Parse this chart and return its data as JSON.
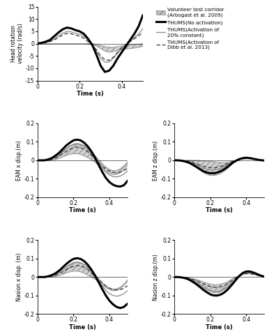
{
  "t": [
    0.0,
    0.02,
    0.04,
    0.06,
    0.08,
    0.1,
    0.12,
    0.14,
    0.16,
    0.18,
    0.2,
    0.22,
    0.24,
    0.26,
    0.28,
    0.3,
    0.32,
    0.34,
    0.36,
    0.38,
    0.4,
    0.42,
    0.44,
    0.46,
    0.48,
    0.5
  ],
  "hrv_no_act": [
    0,
    0.3,
    0.8,
    1.5,
    3.0,
    4.5,
    5.8,
    6.5,
    6.2,
    5.5,
    5.0,
    4.0,
    2.0,
    -0.5,
    -4.5,
    -9.0,
    -11.5,
    -11.0,
    -9.0,
    -6.0,
    -3.5,
    -1.0,
    1.5,
    4.0,
    7.0,
    11.5
  ],
  "hrv_20pct": [
    0,
    0.2,
    0.5,
    1.0,
    2.0,
    3.2,
    4.2,
    5.0,
    4.8,
    4.2,
    3.8,
    3.0,
    1.5,
    -0.2,
    -3.0,
    -6.0,
    -7.5,
    -7.5,
    -6.0,
    -4.0,
    -2.0,
    -0.5,
    1.0,
    2.5,
    4.0,
    6.0
  ],
  "hrv_dibb": [
    0,
    0.2,
    0.4,
    0.8,
    1.5,
    2.5,
    3.5,
    4.2,
    4.0,
    3.5,
    3.0,
    2.2,
    0.8,
    -0.5,
    -2.5,
    -5.0,
    -6.5,
    -6.8,
    -5.5,
    -3.5,
    -1.8,
    -0.3,
    0.8,
    2.0,
    3.2,
    4.5
  ],
  "hrv_corr_upper": [
    0,
    0.0,
    0.0,
    0.0,
    0.0,
    0.0,
    0.0,
    0.0,
    0.0,
    0.0,
    0.0,
    0.0,
    0.0,
    0.0,
    -0.3,
    -0.8,
    -1.2,
    -1.5,
    -1.5,
    -1.2,
    -1.0,
    -0.8,
    -0.5,
    -0.3,
    -0.2,
    -0.1
  ],
  "hrv_corr_lower": [
    0,
    0.0,
    0.0,
    0.0,
    0.0,
    0.0,
    0.0,
    0.0,
    0.0,
    0.0,
    0.0,
    0.0,
    -0.2,
    -0.5,
    -1.0,
    -2.0,
    -3.0,
    -3.5,
    -3.2,
    -2.8,
    -2.5,
    -2.2,
    -2.0,
    -1.8,
    -1.5,
    -1.2
  ],
  "eam_x_no_act": [
    0,
    0,
    0,
    0.005,
    0.012,
    0.025,
    0.04,
    0.06,
    0.08,
    0.095,
    0.108,
    0.112,
    0.108,
    0.095,
    0.075,
    0.048,
    0.015,
    -0.025,
    -0.062,
    -0.095,
    -0.118,
    -0.132,
    -0.14,
    -0.142,
    -0.135,
    -0.112
  ],
  "eam_x_20pct": [
    0,
    0,
    0,
    0.003,
    0.008,
    0.018,
    0.03,
    0.046,
    0.062,
    0.076,
    0.085,
    0.088,
    0.085,
    0.075,
    0.058,
    0.035,
    0.008,
    -0.018,
    -0.042,
    -0.065,
    -0.08,
    -0.088,
    -0.09,
    -0.085,
    -0.075,
    -0.058
  ],
  "eam_x_dibb": [
    0,
    0,
    0,
    0.002,
    0.005,
    0.012,
    0.022,
    0.035,
    0.048,
    0.06,
    0.068,
    0.072,
    0.068,
    0.06,
    0.046,
    0.028,
    0.006,
    -0.012,
    -0.03,
    -0.046,
    -0.058,
    -0.065,
    -0.068,
    -0.065,
    -0.056,
    -0.044
  ],
  "eam_x_corr_upper": [
    0,
    0,
    0.002,
    0.006,
    0.012,
    0.022,
    0.035,
    0.05,
    0.065,
    0.078,
    0.088,
    0.092,
    0.088,
    0.08,
    0.066,
    0.048,
    0.026,
    0.004,
    -0.018,
    -0.036,
    -0.05,
    -0.056,
    -0.055,
    -0.046,
    -0.03,
    -0.01
  ],
  "eam_x_corr_lower": [
    0,
    0,
    -0.001,
    -0.001,
    0.0,
    0.004,
    0.01,
    0.018,
    0.026,
    0.032,
    0.036,
    0.036,
    0.032,
    0.024,
    0.014,
    0.004,
    -0.01,
    -0.026,
    -0.044,
    -0.06,
    -0.072,
    -0.078,
    -0.076,
    -0.066,
    -0.05,
    -0.03
  ],
  "eam_z_no_act": [
    0,
    0,
    -0.002,
    -0.006,
    -0.012,
    -0.022,
    -0.034,
    -0.046,
    -0.058,
    -0.066,
    -0.07,
    -0.07,
    -0.066,
    -0.058,
    -0.046,
    -0.032,
    -0.016,
    -0.004,
    0.006,
    0.012,
    0.014,
    0.012,
    0.008,
    0.004,
    0.001,
    -0.001
  ],
  "eam_z_20pct": [
    0,
    0,
    -0.001,
    -0.004,
    -0.008,
    -0.015,
    -0.024,
    -0.033,
    -0.042,
    -0.048,
    -0.052,
    -0.052,
    -0.048,
    -0.042,
    -0.033,
    -0.022,
    -0.01,
    -0.001,
    0.007,
    0.012,
    0.013,
    0.012,
    0.008,
    0.004,
    0.001,
    0.0
  ],
  "eam_z_dibb": [
    0,
    0,
    -0.001,
    -0.003,
    -0.006,
    -0.011,
    -0.018,
    -0.025,
    -0.032,
    -0.037,
    -0.04,
    -0.04,
    -0.037,
    -0.032,
    -0.025,
    -0.016,
    -0.007,
    0.001,
    0.007,
    0.011,
    0.012,
    0.011,
    0.008,
    0.004,
    0.001,
    0.0
  ],
  "eam_z_corr_upper": [
    0,
    0,
    0.0,
    0.0,
    0.0,
    0.0,
    0.0,
    -0.001,
    -0.002,
    -0.004,
    -0.006,
    -0.008,
    -0.01,
    -0.012,
    -0.012,
    -0.01,
    -0.006,
    -0.001,
    0.003,
    0.006,
    0.008,
    0.008,
    0.006,
    0.004,
    0.002,
    0.001
  ],
  "eam_z_corr_lower": [
    0,
    0,
    -0.003,
    -0.008,
    -0.016,
    -0.026,
    -0.038,
    -0.052,
    -0.066,
    -0.076,
    -0.082,
    -0.082,
    -0.078,
    -0.07,
    -0.058,
    -0.042,
    -0.022,
    -0.006,
    0.005,
    0.012,
    0.015,
    0.014,
    0.01,
    0.006,
    0.002,
    -0.001
  ],
  "nas_x_no_act": [
    0,
    0,
    0,
    0.004,
    0.01,
    0.02,
    0.034,
    0.052,
    0.07,
    0.086,
    0.098,
    0.102,
    0.098,
    0.086,
    0.066,
    0.04,
    0.008,
    -0.028,
    -0.065,
    -0.1,
    -0.128,
    -0.148,
    -0.162,
    -0.168,
    -0.162,
    -0.145
  ],
  "nas_x_20pct": [
    0,
    0,
    0,
    0.002,
    0.007,
    0.015,
    0.026,
    0.04,
    0.055,
    0.068,
    0.078,
    0.082,
    0.078,
    0.068,
    0.052,
    0.03,
    0.004,
    -0.022,
    -0.048,
    -0.072,
    -0.09,
    -0.1,
    -0.104,
    -0.1,
    -0.09,
    -0.075
  ],
  "nas_x_dibb": [
    0,
    0,
    0,
    0.001,
    0.004,
    0.01,
    0.018,
    0.028,
    0.04,
    0.05,
    0.058,
    0.062,
    0.06,
    0.052,
    0.04,
    0.022,
    0.002,
    -0.016,
    -0.032,
    -0.048,
    -0.06,
    -0.068,
    -0.07,
    -0.068,
    -0.06,
    -0.048
  ],
  "nas_x_corr_upper": [
    0,
    0,
    0.001,
    0.004,
    0.009,
    0.016,
    0.026,
    0.038,
    0.052,
    0.064,
    0.074,
    0.078,
    0.076,
    0.068,
    0.055,
    0.036,
    0.014,
    -0.008,
    -0.03,
    -0.048,
    -0.06,
    -0.066,
    -0.064,
    -0.055,
    -0.038,
    -0.016
  ],
  "nas_x_corr_lower": [
    0,
    0,
    -0.001,
    -0.001,
    0.0,
    0.003,
    0.008,
    0.014,
    0.022,
    0.028,
    0.032,
    0.032,
    0.028,
    0.02,
    0.01,
    0.0,
    -0.012,
    -0.026,
    -0.042,
    -0.058,
    -0.068,
    -0.074,
    -0.072,
    -0.062,
    -0.046,
    -0.026
  ],
  "nas_z_no_act": [
    0,
    0,
    -0.002,
    -0.006,
    -0.013,
    -0.024,
    -0.037,
    -0.052,
    -0.068,
    -0.082,
    -0.094,
    -0.1,
    -0.1,
    -0.094,
    -0.082,
    -0.064,
    -0.042,
    -0.018,
    0.005,
    0.022,
    0.03,
    0.03,
    0.024,
    0.016,
    0.008,
    0.002
  ],
  "nas_z_20pct": [
    0,
    0,
    -0.001,
    -0.004,
    -0.009,
    -0.017,
    -0.027,
    -0.038,
    -0.05,
    -0.062,
    -0.072,
    -0.078,
    -0.078,
    -0.072,
    -0.062,
    -0.048,
    -0.03,
    -0.012,
    0.004,
    0.016,
    0.022,
    0.022,
    0.018,
    0.012,
    0.006,
    0.001
  ],
  "nas_z_dibb": [
    0,
    0,
    -0.001,
    -0.003,
    -0.006,
    -0.012,
    -0.019,
    -0.027,
    -0.036,
    -0.044,
    -0.052,
    -0.056,
    -0.056,
    -0.052,
    -0.044,
    -0.034,
    -0.02,
    -0.006,
    0.006,
    0.014,
    0.018,
    0.018,
    0.014,
    0.01,
    0.005,
    0.001
  ],
  "nas_z_corr_upper": [
    0,
    0,
    -0.001,
    -0.002,
    -0.004,
    -0.008,
    -0.013,
    -0.019,
    -0.026,
    -0.032,
    -0.038,
    -0.042,
    -0.042,
    -0.038,
    -0.032,
    -0.023,
    -0.012,
    -0.001,
    0.008,
    0.015,
    0.019,
    0.019,
    0.015,
    0.01,
    0.005,
    0.001
  ],
  "nas_z_corr_lower": [
    0,
    0,
    -0.002,
    -0.006,
    -0.012,
    -0.021,
    -0.032,
    -0.045,
    -0.058,
    -0.07,
    -0.08,
    -0.086,
    -0.086,
    -0.08,
    -0.068,
    -0.052,
    -0.032,
    -0.01,
    0.006,
    0.018,
    0.024,
    0.024,
    0.018,
    0.012,
    0.006,
    0.001
  ],
  "hrv_ylim": [
    -15,
    15
  ],
  "disp_ylim": [
    -0.2,
    0.2
  ],
  "xlim": [
    0,
    0.5
  ],
  "xticks": [
    0,
    0.2,
    0.4
  ],
  "hrv_yticks": [
    -15,
    -10,
    -5,
    0,
    5,
    10,
    15
  ],
  "disp_yticks": [
    -0.2,
    -0.1,
    0,
    0.1,
    0.2
  ],
  "xlabel": "Time (s)",
  "legend_corridor": "Volunteer test corridor\n(Arbogast et al. 2009)",
  "legend_no_act": "THUMS(No activation)",
  "legend_20pct": "THUMS(Activation of\n20% constant)",
  "legend_dibb": "THUMS(Activation of\nDibb et al. 2013)"
}
